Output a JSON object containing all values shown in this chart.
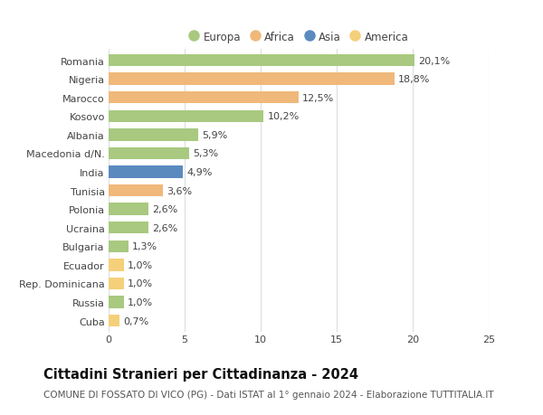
{
  "countries": [
    "Romania",
    "Nigeria",
    "Marocco",
    "Kosovo",
    "Albania",
    "Macedonia d/N.",
    "India",
    "Tunisia",
    "Polonia",
    "Ucraina",
    "Bulgaria",
    "Ecuador",
    "Rep. Dominicana",
    "Russia",
    "Cuba"
  ],
  "values": [
    20.1,
    18.8,
    12.5,
    10.2,
    5.9,
    5.3,
    4.9,
    3.6,
    2.6,
    2.6,
    1.3,
    1.0,
    1.0,
    1.0,
    0.7
  ],
  "labels": [
    "20,1%",
    "18,8%",
    "12,5%",
    "10,2%",
    "5,9%",
    "5,3%",
    "4,9%",
    "3,6%",
    "2,6%",
    "2,6%",
    "1,3%",
    "1,0%",
    "1,0%",
    "1,0%",
    "0,7%"
  ],
  "continents": [
    "Europa",
    "Africa",
    "Africa",
    "Europa",
    "Europa",
    "Europa",
    "Asia",
    "Africa",
    "Europa",
    "Europa",
    "Europa",
    "America",
    "America",
    "Europa",
    "America"
  ],
  "colors": {
    "Europa": "#a8c97f",
    "Africa": "#f0b87a",
    "Asia": "#5b8abf",
    "America": "#f5d07a"
  },
  "title": "Cittadini Stranieri per Cittadinanza - 2024",
  "subtitle": "COMUNE DI FOSSATO DI VICO (PG) - Dati ISTAT al 1° gennaio 2024 - Elaborazione TUTTITALIA.IT",
  "xlim": [
    0,
    25
  ],
  "xticks": [
    0,
    5,
    10,
    15,
    20,
    25
  ],
  "background_color": "#ffffff",
  "grid_color": "#dddddd",
  "bar_height": 0.65,
  "title_fontsize": 10.5,
  "subtitle_fontsize": 7.5,
  "label_fontsize": 8,
  "tick_fontsize": 8,
  "legend_fontsize": 8.5,
  "legend_order": [
    "Europa",
    "Africa",
    "Asia",
    "America"
  ]
}
